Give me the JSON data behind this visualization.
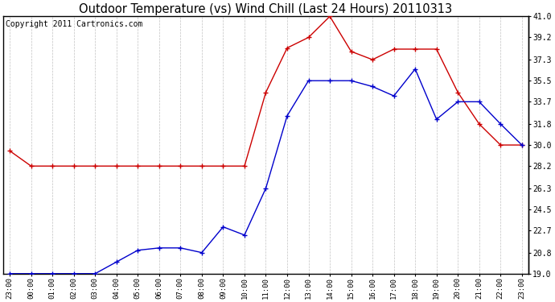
{
  "title": "Outdoor Temperature (vs) Wind Chill (Last 24 Hours) 20110313",
  "copyright": "Copyright 2011 Cartronics.com",
  "x_labels": [
    "23:00",
    "00:00",
    "01:00",
    "02:00",
    "03:00",
    "04:00",
    "05:00",
    "06:00",
    "07:00",
    "08:00",
    "09:00",
    "10:00",
    "11:00",
    "12:00",
    "13:00",
    "14:00",
    "15:00",
    "16:00",
    "17:00",
    "18:00",
    "19:00",
    "20:00",
    "21:00",
    "22:00",
    "23:00"
  ],
  "temp_y": [
    19.0,
    19.0,
    19.0,
    19.0,
    19.0,
    20.0,
    21.0,
    21.2,
    21.2,
    20.8,
    23.0,
    22.3,
    26.3,
    32.5,
    35.5,
    35.5,
    35.5,
    35.0,
    34.2,
    36.5,
    32.2,
    33.7,
    33.7,
    31.8,
    30.0
  ],
  "wind_chill_y": [
    29.5,
    28.2,
    28.2,
    28.2,
    28.2,
    28.2,
    28.2,
    28.2,
    28.2,
    28.2,
    28.2,
    28.2,
    34.5,
    38.3,
    39.2,
    41.0,
    38.0,
    37.3,
    38.2,
    38.2,
    38.2,
    34.5,
    31.8,
    30.0,
    30.0
  ],
  "temp_color": "#0000cc",
  "wind_chill_color": "#cc0000",
  "ylim": [
    19.0,
    41.0
  ],
  "yticks": [
    19.0,
    20.8,
    22.7,
    24.5,
    26.3,
    28.2,
    30.0,
    31.8,
    33.7,
    35.5,
    37.3,
    39.2,
    41.0
  ],
  "background_color": "#ffffff",
  "plot_bg_color": "#ffffff",
  "grid_color": "#bbbbbb",
  "title_fontsize": 11,
  "copyright_fontsize": 7
}
